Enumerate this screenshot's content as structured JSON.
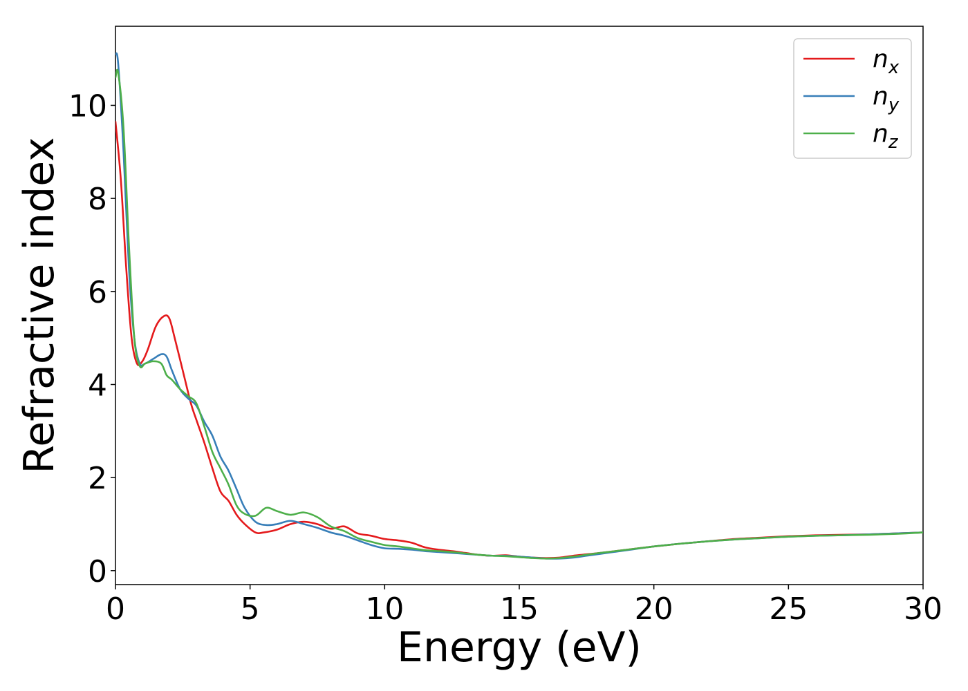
{
  "chart_data": {
    "type": "line",
    "xlabel": "Energy (eV)",
    "ylabel": "Refractive index",
    "xlim": [
      0,
      30
    ],
    "ylim": [
      -0.3,
      11.7
    ],
    "xticks": [
      0,
      5,
      10,
      15,
      20,
      25,
      30
    ],
    "yticks": [
      0,
      2,
      4,
      6,
      8,
      10
    ],
    "grid": false,
    "legend_position": "top-right",
    "series": [
      {
        "name": "n",
        "subscript": "x",
        "color": "#e41a1c",
        "x": [
          0,
          0.2,
          0.4,
          0.6,
          0.8,
          1.0,
          1.2,
          1.5,
          1.8,
          2.0,
          2.2,
          2.5,
          2.8,
          3.0,
          3.3,
          3.6,
          3.9,
          4.2,
          4.5,
          4.8,
          5.2,
          5.5,
          6.0,
          6.5,
          7.0,
          7.5,
          8.0,
          8.5,
          9.0,
          9.5,
          10.0,
          10.5,
          11.0,
          11.5,
          12.0,
          12.5,
          13.0,
          13.5,
          14.0,
          14.5,
          15.0,
          15.5,
          16.0,
          16.5,
          17.0,
          17.5,
          18.0,
          19.0,
          20.0,
          21.0,
          22.0,
          23.0,
          24.0,
          25.0,
          26.0,
          27.0,
          28.0,
          29.0,
          30.0
        ],
        "y": [
          9.65,
          8.4,
          6.5,
          5.0,
          4.45,
          4.5,
          4.75,
          5.25,
          5.47,
          5.42,
          5.0,
          4.3,
          3.6,
          3.25,
          2.75,
          2.2,
          1.7,
          1.5,
          1.2,
          1.0,
          0.82,
          0.82,
          0.88,
          1.0,
          1.05,
          1.0,
          0.9,
          0.95,
          0.8,
          0.75,
          0.68,
          0.65,
          0.6,
          0.5,
          0.45,
          0.42,
          0.38,
          0.34,
          0.32,
          0.33,
          0.3,
          0.28,
          0.27,
          0.28,
          0.32,
          0.35,
          0.38,
          0.45,
          0.52,
          0.58,
          0.63,
          0.68,
          0.71,
          0.74,
          0.76,
          0.77,
          0.78,
          0.8,
          0.82
        ]
      },
      {
        "name": "n",
        "subscript": "y",
        "color": "#377eb8",
        "x": [
          0,
          0.1,
          0.3,
          0.5,
          0.7,
          0.9,
          1.1,
          1.4,
          1.7,
          1.9,
          2.1,
          2.4,
          2.7,
          3.0,
          3.3,
          3.6,
          3.9,
          4.2,
          4.5,
          4.8,
          5.2,
          5.6,
          6.0,
          6.5,
          7.0,
          7.5,
          8.0,
          8.5,
          9.0,
          9.5,
          10.0,
          10.5,
          11.0,
          11.5,
          12.0,
          12.5,
          13.0,
          13.5,
          14.0,
          14.5,
          15.0,
          15.5,
          16.0,
          16.5,
          17.0,
          17.5,
          18.0,
          19.0,
          20.0,
          21.0,
          22.0,
          23.0,
          24.0,
          25.0,
          26.0,
          27.0,
          28.0,
          29.0,
          30.0
        ],
        "y": [
          11.1,
          10.9,
          9.0,
          6.5,
          5.0,
          4.45,
          4.45,
          4.55,
          4.65,
          4.6,
          4.3,
          3.9,
          3.7,
          3.55,
          3.2,
          2.9,
          2.45,
          2.15,
          1.75,
          1.35,
          1.05,
          0.98,
          1.0,
          1.07,
          1.0,
          0.92,
          0.82,
          0.75,
          0.65,
          0.55,
          0.48,
          0.47,
          0.45,
          0.42,
          0.4,
          0.38,
          0.36,
          0.34,
          0.32,
          0.32,
          0.3,
          0.28,
          0.26,
          0.26,
          0.28,
          0.32,
          0.36,
          0.44,
          0.52,
          0.58,
          0.63,
          0.67,
          0.7,
          0.73,
          0.75,
          0.76,
          0.78,
          0.8,
          0.82
        ]
      },
      {
        "name": "n",
        "subscript": "z",
        "color": "#4daf4a",
        "x": [
          0,
          0.1,
          0.3,
          0.5,
          0.7,
          0.9,
          1.1,
          1.4,
          1.7,
          1.9,
          2.1,
          2.4,
          2.7,
          3.0,
          3.3,
          3.6,
          3.9,
          4.2,
          4.5,
          4.8,
          5.2,
          5.6,
          6.0,
          6.5,
          7.0,
          7.5,
          8.0,
          8.5,
          9.0,
          9.5,
          10.0,
          10.5,
          11.0,
          11.5,
          12.0,
          12.5,
          13.0,
          13.5,
          14.0,
          14.5,
          15.0,
          15.5,
          16.0,
          16.5,
          17.0,
          17.5,
          18.0,
          19.0,
          20.0,
          21.0,
          22.0,
          23.0,
          24.0,
          25.0,
          26.0,
          27.0,
          28.0,
          29.0,
          30.0
        ],
        "y": [
          10.6,
          10.7,
          9.5,
          7.0,
          5.0,
          4.4,
          4.45,
          4.5,
          4.45,
          4.2,
          4.1,
          3.9,
          3.75,
          3.6,
          3.1,
          2.55,
          2.2,
          1.85,
          1.4,
          1.22,
          1.18,
          1.35,
          1.28,
          1.2,
          1.25,
          1.15,
          0.95,
          0.85,
          0.7,
          0.62,
          0.55,
          0.52,
          0.48,
          0.44,
          0.42,
          0.4,
          0.37,
          0.34,
          0.32,
          0.31,
          0.29,
          0.27,
          0.26,
          0.27,
          0.3,
          0.34,
          0.38,
          0.45,
          0.52,
          0.58,
          0.63,
          0.67,
          0.7,
          0.73,
          0.75,
          0.76,
          0.77,
          0.79,
          0.82
        ]
      }
    ]
  }
}
